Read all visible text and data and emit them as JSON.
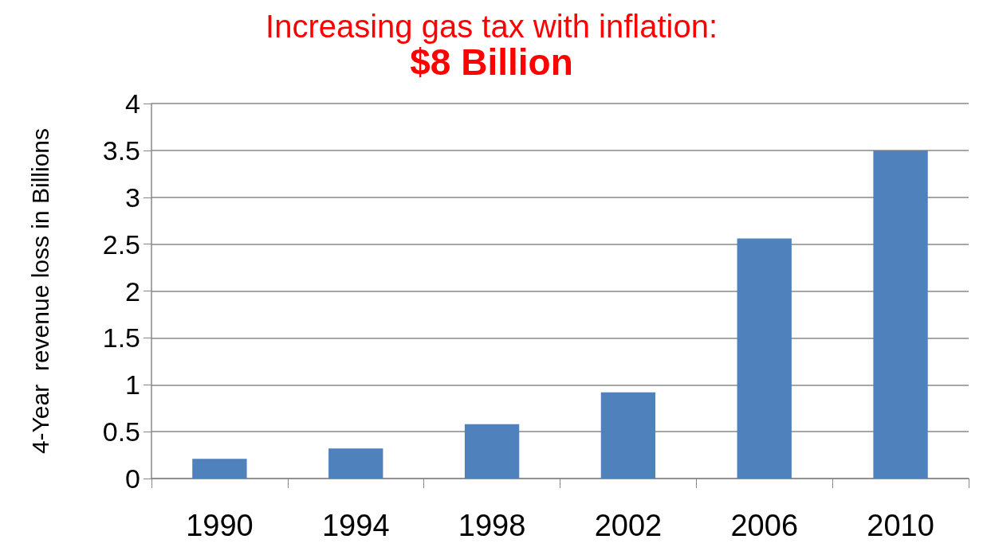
{
  "chart_data": {
    "type": "bar",
    "title": "Increasing gas tax with inflation:",
    "subtitle": "$8 Billion",
    "ylabel": "4-Year  revenue loss in Billions",
    "categories": [
      "1990",
      "1994",
      "1998",
      "2002",
      "2006",
      "2010"
    ],
    "values": [
      0.21,
      0.32,
      0.58,
      0.92,
      2.56,
      3.5
    ],
    "color": "#4f81bd",
    "ylim": [
      0,
      4
    ],
    "yticks": [
      0,
      0.5,
      1,
      1.5,
      2,
      2.5,
      3,
      3.5,
      4
    ],
    "grid": "y"
  }
}
